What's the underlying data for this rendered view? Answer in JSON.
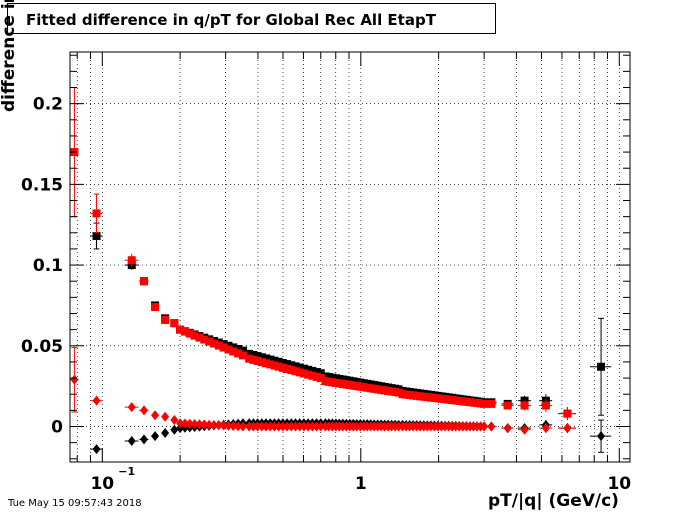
{
  "timestamp": "Tue May 15 09:57:43 2018",
  "chart_data": {
    "type": "scatter",
    "title": "Fitted difference in q/pT for Global Rec All EtapT",
    "xlabel": "pT/|q| (GeV/c)",
    "ylabel": "difference in q/pT",
    "x_scale": "log",
    "xlim": [
      0.075,
      11
    ],
    "ylim": [
      -0.022,
      0.232
    ],
    "x_ticks": [
      {
        "value": 0.1,
        "base": "10",
        "exp": "−1"
      },
      {
        "value": 1,
        "base": "1",
        "exp": ""
      },
      {
        "value": 10,
        "base": "10",
        "exp": ""
      }
    ],
    "y_ticks": [
      {
        "value": 0,
        "label": "0"
      },
      {
        "value": 0.05,
        "label": "0.05"
      },
      {
        "value": 0.1,
        "label": "0.1"
      },
      {
        "value": 0.15,
        "label": "0.15"
      },
      {
        "value": 0.2,
        "label": "0.2"
      }
    ],
    "grid": true,
    "series": [
      {
        "marker": "square",
        "color": "#000000",
        "points": [
          {
            "x": 0.095,
            "y": 0.118,
            "ex": 0.005,
            "ey": 0.008
          },
          {
            "x": 0.13,
            "y": 0.1,
            "ex": 0.008,
            "ey": 0.003
          },
          {
            "x": 0.145,
            "y": 0.09,
            "ex": 0.006,
            "ey": 0.002
          },
          {
            "x": 0.16,
            "y": 0.075,
            "ex": 0.005,
            "ey": 0.002
          },
          {
            "x": 0.175,
            "y": 0.067,
            "ex": 0.005,
            "ey": 0.001
          },
          {
            "x": 0.19,
            "y": 0.064,
            "ex": 0.005,
            "ey": 0.001
          },
          {
            "x": 0.2,
            "y": 0.06,
            "x2": 0.35,
            "y2": 0.047,
            "n": 14
          },
          {
            "x": 0.37,
            "y": 0.045,
            "x2": 0.7,
            "y2": 0.033,
            "n": 18
          },
          {
            "x": 0.73,
            "y": 0.031,
            "x2": 1.4,
            "y2": 0.023,
            "n": 22
          },
          {
            "x": 1.45,
            "y": 0.022,
            "x2": 3,
            "y2": 0.015,
            "n": 24
          },
          {
            "x": 3.2,
            "y": 0.015,
            "ex": 0.15,
            "ey": 0.002
          },
          {
            "x": 3.7,
            "y": 0.014,
            "ex": 0.2,
            "ey": 0.002
          },
          {
            "x": 4.3,
            "y": 0.016,
            "ex": 0.25,
            "ey": 0.003
          },
          {
            "x": 5.2,
            "y": 0.016,
            "ex": 0.3,
            "ey": 0.004
          },
          {
            "x": 6.3,
            "y": 0.008,
            "ex": 0.5,
            "ey": 0.004
          },
          {
            "x": 8.5,
            "y": 0.037,
            "ex": 0.8,
            "ey": 0.03
          }
        ]
      },
      {
        "marker": "square",
        "color": "#ff0000",
        "points": [
          {
            "x": 0.078,
            "y": 0.17,
            "ex": 0.003,
            "ey": 0.04
          },
          {
            "x": 0.095,
            "y": 0.132,
            "ex": 0.005,
            "ey": 0.012
          },
          {
            "x": 0.13,
            "y": 0.103,
            "ex": 0.008,
            "ey": 0.004
          },
          {
            "x": 0.145,
            "y": 0.09,
            "ex": 0.006,
            "ey": 0.002
          },
          {
            "x": 0.16,
            "y": 0.074,
            "ex": 0.005,
            "ey": 0.002
          },
          {
            "x": 0.175,
            "y": 0.066,
            "ex": 0.005,
            "ey": 0.001
          },
          {
            "x": 0.19,
            "y": 0.064,
            "ex": 0.005,
            "ey": 0.001
          },
          {
            "x": 0.2,
            "y": 0.06,
            "x2": 0.35,
            "y2": 0.044,
            "n": 14
          },
          {
            "x": 0.37,
            "y": 0.042,
            "x2": 0.7,
            "y2": 0.03,
            "n": 18
          },
          {
            "x": 0.73,
            "y": 0.028,
            "x2": 1.4,
            "y2": 0.021,
            "n": 22
          },
          {
            "x": 1.45,
            "y": 0.02,
            "x2": 3,
            "y2": 0.014,
            "n": 24
          },
          {
            "x": 3.2,
            "y": 0.014,
            "ex": 0.15,
            "ey": 0.002
          },
          {
            "x": 3.7,
            "y": 0.013,
            "ex": 0.2,
            "ey": 0.002
          },
          {
            "x": 4.3,
            "y": 0.013,
            "ex": 0.25,
            "ey": 0.003
          },
          {
            "x": 5.2,
            "y": 0.013,
            "ex": 0.3,
            "ey": 0.004
          },
          {
            "x": 6.3,
            "y": 0.008,
            "ex": 0.5,
            "ey": 0.004
          }
        ]
      },
      {
        "marker": "diamond",
        "color": "#000000",
        "points": [
          {
            "x": 0.095,
            "y": -0.014,
            "ex": 0.005,
            "ey": 0.002
          },
          {
            "x": 0.13,
            "y": -0.009,
            "ex": 0.008,
            "ey": 0.001
          },
          {
            "x": 0.145,
            "y": -0.008,
            "ex": 0.006,
            "ey": 0.001
          },
          {
            "x": 0.16,
            "y": -0.006,
            "ex": 0.005,
            "ey": 0.001
          },
          {
            "x": 0.175,
            "y": -0.004,
            "ex": 0.005,
            "ey": 0.001
          },
          {
            "x": 0.19,
            "y": -0.002,
            "ex": 0.005,
            "ey": 0.001
          },
          {
            "x": 0.2,
            "y": -0.001,
            "x2": 0.35,
            "y2": 0.002,
            "n": 14
          },
          {
            "x": 0.37,
            "y": 0.002,
            "x2": 0.7,
            "y2": 0.002,
            "n": 18
          },
          {
            "x": 0.73,
            "y": 0.002,
            "x2": 1.4,
            "y2": 0.001,
            "n": 22
          },
          {
            "x": 1.45,
            "y": 0.001,
            "x2": 3,
            "y2": 0.0,
            "n": 24
          },
          {
            "x": 3.2,
            "y": 0.0,
            "ex": 0.15,
            "ey": 0.001
          },
          {
            "x": 3.7,
            "y": -0.001,
            "ex": 0.2,
            "ey": 0.001
          },
          {
            "x": 4.3,
            "y": -0.001,
            "ex": 0.25,
            "ey": 0.002
          },
          {
            "x": 5.2,
            "y": 0.001,
            "ex": 0.3,
            "ey": 0.003
          },
          {
            "x": 6.3,
            "y": -0.001,
            "ex": 0.5,
            "ey": 0.003
          },
          {
            "x": 8.5,
            "y": -0.006,
            "ex": 0.8,
            "ey": 0.01
          }
        ]
      },
      {
        "marker": "diamond",
        "color": "#ff0000",
        "points": [
          {
            "x": 0.078,
            "y": 0.029,
            "ex": 0.003,
            "ey": 0.02
          },
          {
            "x": 0.095,
            "y": 0.016,
            "ex": 0.005,
            "ey": 0.003
          },
          {
            "x": 0.13,
            "y": 0.012,
            "ex": 0.008,
            "ey": 0.001
          },
          {
            "x": 0.145,
            "y": 0.01,
            "ex": 0.006,
            "ey": 0.001
          },
          {
            "x": 0.16,
            "y": 0.007,
            "ex": 0.005,
            "ey": 0.001
          },
          {
            "x": 0.175,
            "y": 0.006,
            "ex": 0.005,
            "ey": 0.001
          },
          {
            "x": 0.19,
            "y": 0.004,
            "ex": 0.005,
            "ey": 0.001
          },
          {
            "x": 0.2,
            "y": 0.002,
            "x2": 0.35,
            "y2": 0.0,
            "n": 14
          },
          {
            "x": 0.37,
            "y": 0.0,
            "x2": 0.7,
            "y2": 0.0,
            "n": 18
          },
          {
            "x": 0.73,
            "y": 0.0,
            "x2": 1.4,
            "y2": 0.0,
            "n": 22
          },
          {
            "x": 1.45,
            "y": 0.0,
            "x2": 3,
            "y2": 0.0,
            "n": 24
          },
          {
            "x": 3.2,
            "y": 0.0,
            "ex": 0.15,
            "ey": 0.001
          },
          {
            "x": 3.7,
            "y": -0.001,
            "ex": 0.2,
            "ey": 0.001
          },
          {
            "x": 4.3,
            "y": -0.002,
            "ex": 0.25,
            "ey": 0.002
          },
          {
            "x": 5.2,
            "y": -0.001,
            "ex": 0.3,
            "ey": 0.003
          },
          {
            "x": 6.3,
            "y": -0.001,
            "ex": 0.5,
            "ey": 0.003
          }
        ]
      }
    ]
  }
}
